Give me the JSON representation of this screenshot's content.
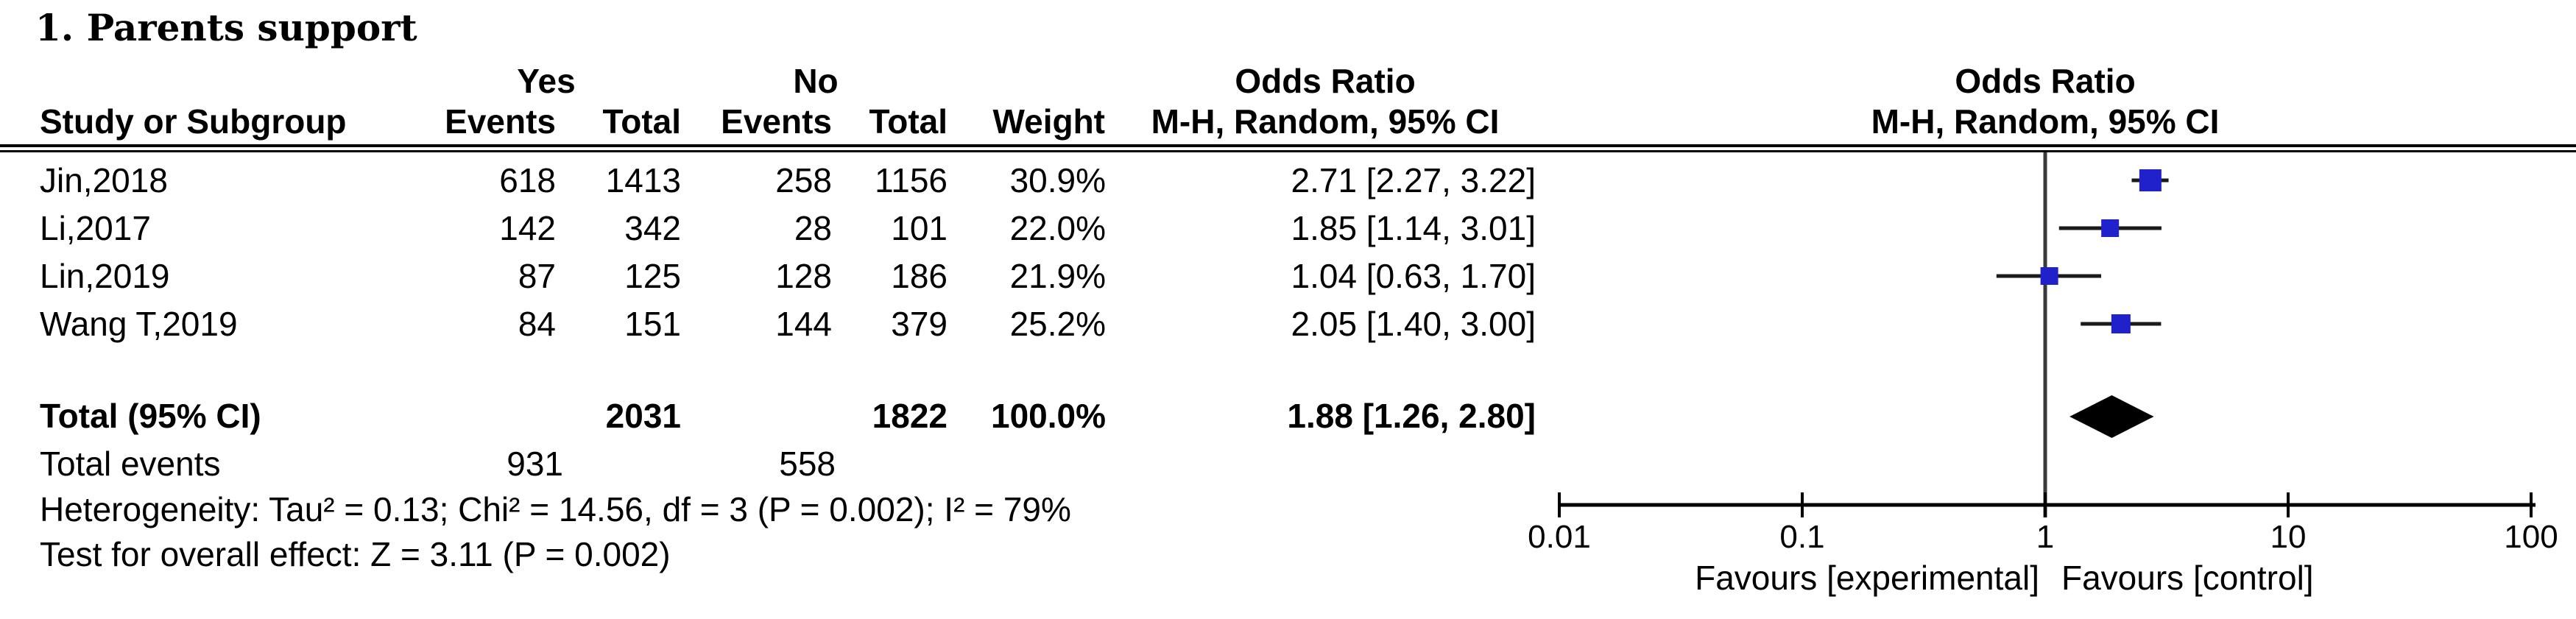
{
  "title": "1. Parents support",
  "table": {
    "group_headers": {
      "yes": "Yes",
      "no": "No",
      "or_text": "Odds Ratio",
      "or_plot": "Odds Ratio"
    },
    "col_headers": {
      "study": "Study or Subgroup",
      "yes_events": "Events",
      "yes_total": "Total",
      "no_events": "Events",
      "no_total": "Total",
      "weight": "Weight",
      "mh_text": "M-H, Random, 95% CI",
      "mh_plot": "M-H, Random, 95% CI"
    },
    "rows": [
      {
        "study": "Jin,2018",
        "yes_events": "618",
        "yes_total": "1413",
        "no_events": "258",
        "no_total": "1156",
        "weight": "30.9%",
        "or_ci": "2.71 [2.27, 3.22]"
      },
      {
        "study": "Li,2017",
        "yes_events": "142",
        "yes_total": "342",
        "no_events": "28",
        "no_total": "101",
        "weight": "22.0%",
        "or_ci": "1.85 [1.14, 3.01]"
      },
      {
        "study": "Lin,2019",
        "yes_events": "87",
        "yes_total": "125",
        "no_events": "128",
        "no_total": "186",
        "weight": "21.9%",
        "or_ci": "1.04 [0.63, 1.70]"
      },
      {
        "study": "Wang T,2019",
        "yes_events": "84",
        "yes_total": "151",
        "no_events": "144",
        "no_total": "379",
        "weight": "25.2%",
        "or_ci": "2.05 [1.40, 3.00]"
      }
    ],
    "total_row": {
      "label": "Total (95% CI)",
      "yes_total": "2031",
      "no_total": "1822",
      "weight": "100.0%",
      "or_ci": "1.88 [1.26, 2.80]"
    },
    "total_events": {
      "label": "Total events",
      "yes": "931",
      "no": "558"
    },
    "heterogeneity": "Heterogeneity: Tau² = 0.13; Chi² = 14.56, df = 3 (P = 0.002); I² = 79%",
    "overall_effect": "Test for overall effect: Z = 3.11 (P = 0.002)"
  },
  "chart_data": {
    "type": "forest",
    "x_scale": "log10",
    "x_range": [
      0.01,
      100
    ],
    "axis_ticks": [
      0.01,
      0.1,
      1,
      10,
      100
    ],
    "axis_tick_labels": [
      "0.01",
      "0.1",
      "1",
      "10",
      "100"
    ],
    "null_line": 1,
    "favours_left": "Favours [experimental]",
    "favours_right": "Favours [control]",
    "studies": [
      {
        "name": "Jin,2018",
        "or": 2.71,
        "ci_low": 2.27,
        "ci_high": 3.22,
        "weight": 30.9
      },
      {
        "name": "Li,2017",
        "or": 1.85,
        "ci_low": 1.14,
        "ci_high": 3.01,
        "weight": 22.0
      },
      {
        "name": "Lin,2019",
        "or": 1.04,
        "ci_low": 0.63,
        "ci_high": 1.7,
        "weight": 21.9
      },
      {
        "name": "Wang T,2019",
        "or": 2.05,
        "ci_low": 1.4,
        "ci_high": 3.0,
        "weight": 25.2
      }
    ],
    "total": {
      "or": 1.88,
      "ci_low": 1.26,
      "ci_high": 2.8
    },
    "effect_measure": "Odds Ratio",
    "method": "M-H, Random, 95% CI",
    "marker_color": "#2121cb",
    "line_color": "#000000"
  }
}
